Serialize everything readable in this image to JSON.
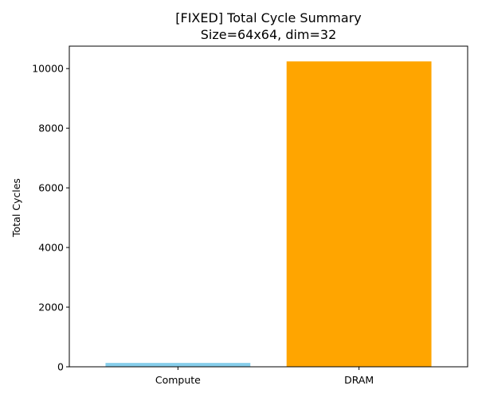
{
  "chart_data": {
    "type": "bar",
    "title_line1": "[FIXED] Total Cycle Summary",
    "title_line2": "Size=64x64, dim=32",
    "xlabel": "",
    "ylabel": "Total Cycles",
    "categories": [
      "Compute",
      "DRAM"
    ],
    "values": [
      130,
      10240
    ],
    "colors": [
      "#87CEEB",
      "#FFA500"
    ],
    "ylim": [
      0,
      10752
    ],
    "yticks": [
      0,
      2000,
      4000,
      6000,
      8000,
      10000
    ],
    "grid": false,
    "legend": "none"
  }
}
